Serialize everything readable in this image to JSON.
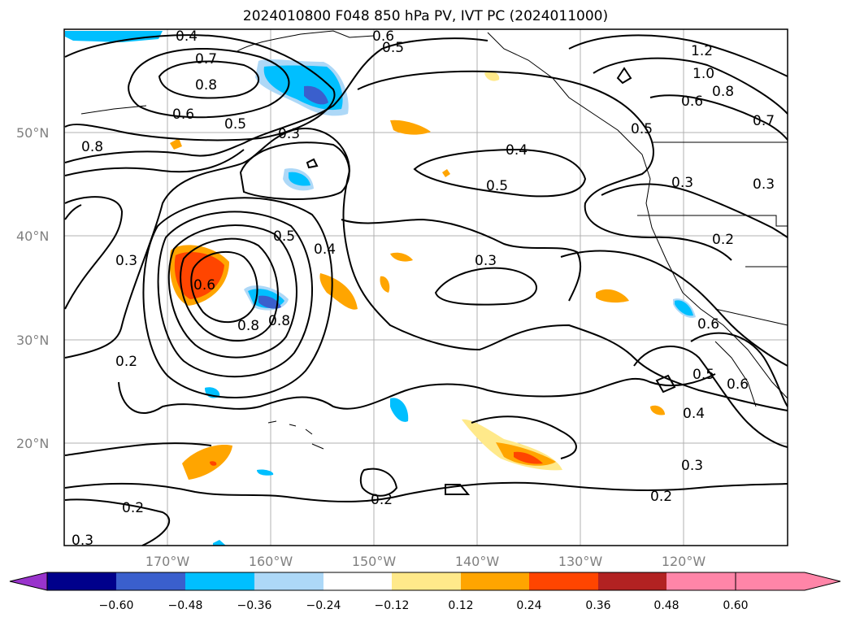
{
  "title": "2024010800 F048 850 hPa PV, IVT PC (2024011000)",
  "axes": {
    "lat_labels": [
      "50°N",
      "40°N",
      "30°N",
      "20°N"
    ],
    "lon_labels": [
      "170°W",
      "160°W",
      "150°W",
      "140°W",
      "130°W",
      "120°W"
    ]
  },
  "contour_labels": [
    "0.4",
    "0.6",
    "0.5",
    "0.7",
    "0.8",
    "0.6",
    "0.5",
    "0.3",
    "0.8",
    "0.8",
    "1.2",
    "1.0",
    "0.8",
    "0.6",
    "0.7",
    "0.5",
    "0.4",
    "0.5",
    "0.3",
    "0.3",
    "0.5",
    "0.4",
    "0.2",
    "0.3",
    "0.3",
    "0.6",
    "0.8",
    "0.2",
    "0.6",
    "0.5",
    "0.6",
    "0.4",
    "0.3",
    "0.2",
    "0.2",
    "0.2",
    "0.3"
  ],
  "colorbar": {
    "ticks": [
      "−0.60",
      "−0.48",
      "−0.36",
      "−0.24",
      "−0.12",
      "0.12",
      "0.24",
      "0.36",
      "0.48",
      "0.60"
    ],
    "colors": [
      "#9933cc",
      "#00008b",
      "#3a5fcd",
      "#00bfff",
      "#add8f7",
      "#ffffff",
      "#ffe98a",
      "#ffa500",
      "#ff4500",
      "#b22222",
      "#ff85a8"
    ]
  }
}
